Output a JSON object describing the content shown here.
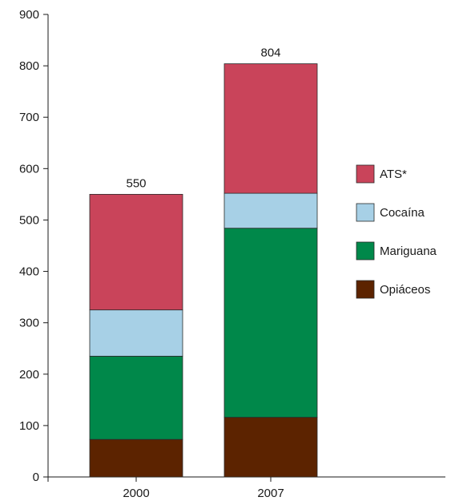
{
  "chart_data": {
    "type": "bar",
    "stacked": true,
    "categories": [
      "2000",
      "2007"
    ],
    "totals": [
      "550",
      "804"
    ],
    "series": [
      {
        "name": "Opiáceos",
        "color": "#5c2300",
        "values": [
          73,
          116
        ]
      },
      {
        "name": "Mariguana",
        "color": "#00884a",
        "values": [
          162,
          368
        ]
      },
      {
        "name": "Cocaína",
        "color": "#a7d0e6",
        "values": [
          90,
          68
        ]
      },
      {
        "name": "ATS*",
        "color": "#c9445a",
        "values": [
          225,
          252
        ]
      }
    ],
    "legend_order": [
      "ATS*",
      "Cocaína",
      "Mariguana",
      "Opiáceos"
    ],
    "y_ticks": [
      "0",
      "100",
      "200",
      "300",
      "400",
      "500",
      "600",
      "700",
      "800",
      "900"
    ],
    "ylim": [
      0,
      900
    ],
    "legend_position": "right",
    "grid": false
  }
}
